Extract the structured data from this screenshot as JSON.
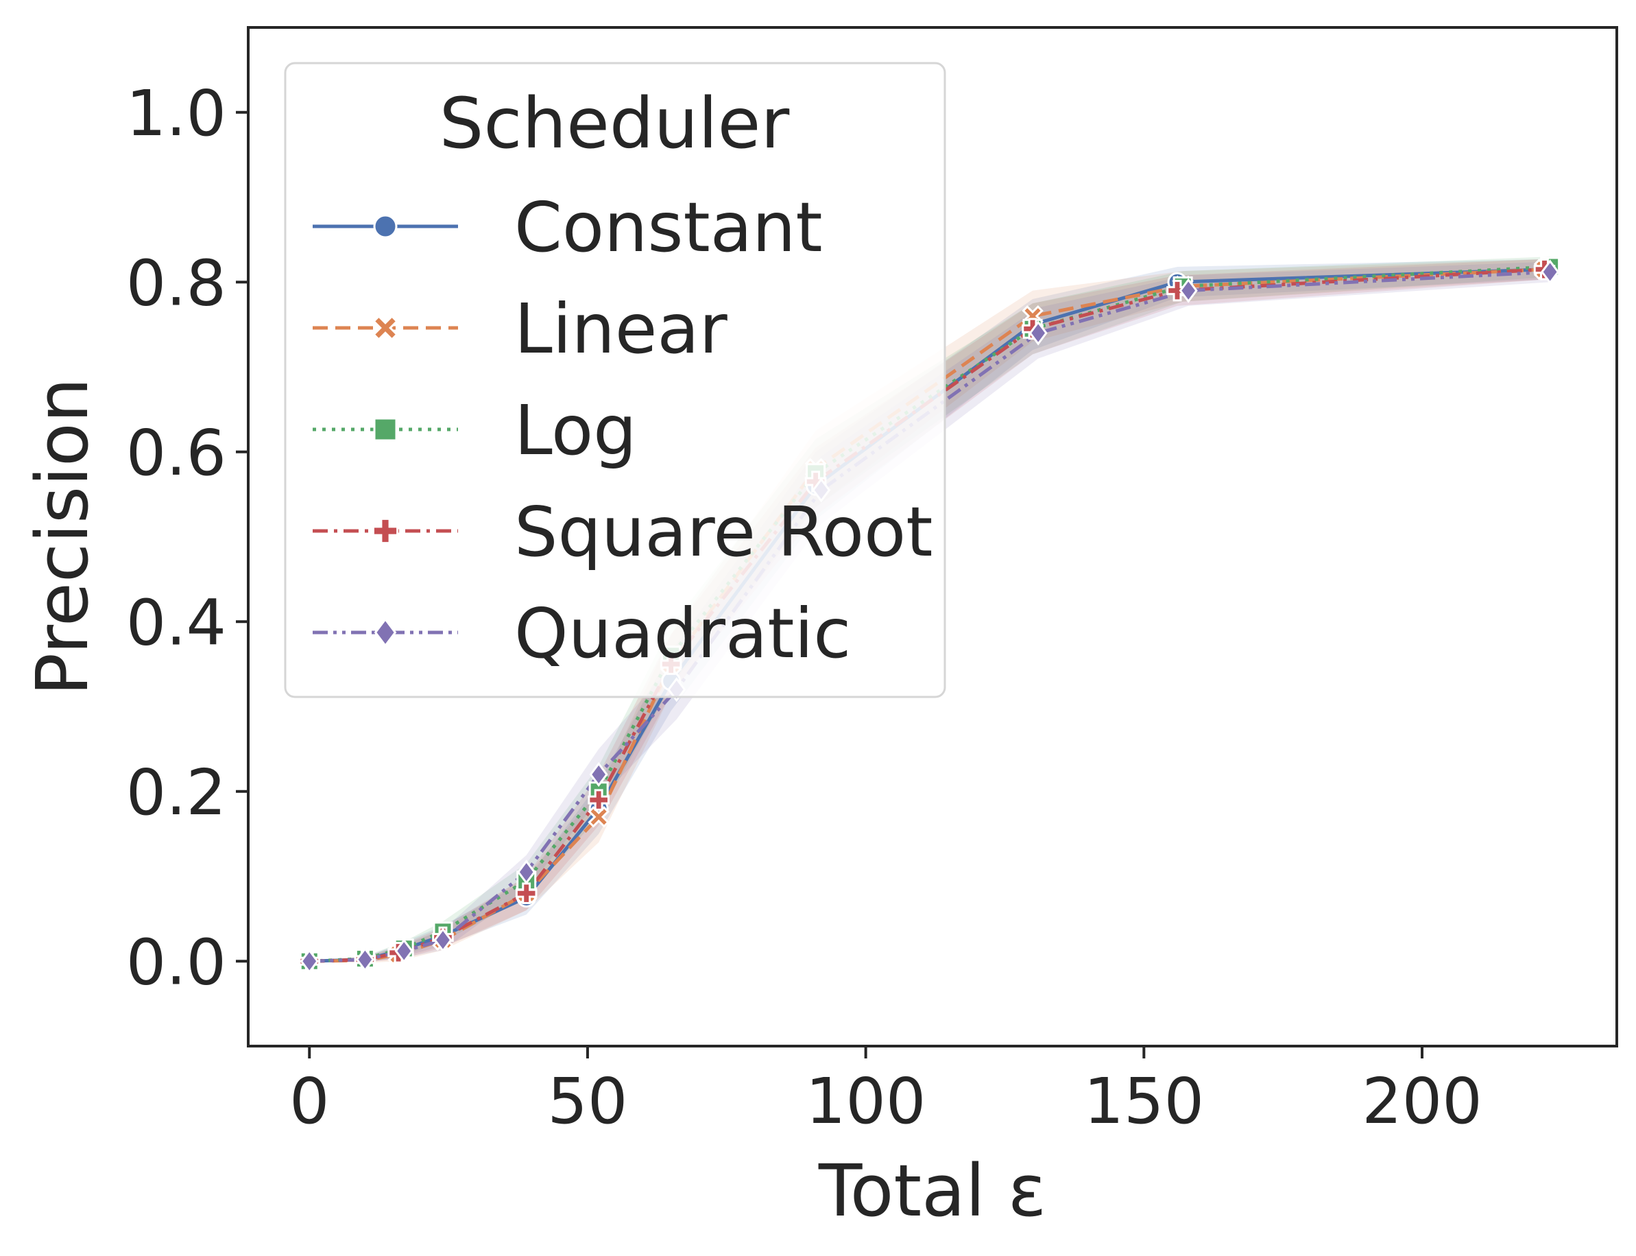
{
  "chart_data": {
    "type": "line",
    "xlabel": "Total ε",
    "ylabel": "Precision",
    "xlim": [
      -11,
      235
    ],
    "ylim": [
      -0.1,
      1.1
    ],
    "xticks": [
      0,
      50,
      100,
      150,
      200
    ],
    "yticks": [
      0.0,
      0.2,
      0.4,
      0.6,
      0.8,
      1.0
    ],
    "xtick_labels": [
      "0",
      "50",
      "100",
      "150",
      "200"
    ],
    "ytick_labels": [
      "0.0",
      "0.2",
      "0.4",
      "0.6",
      "0.8",
      "1.0"
    ],
    "grid": false,
    "confidence_bands": true,
    "legend": {
      "title": "Scheduler",
      "position": "upper-left"
    },
    "series": [
      {
        "name": "Constant",
        "color": "#4c72b0",
        "dash": "solid",
        "marker": "circle",
        "x": [
          0,
          10,
          16,
          24,
          39,
          52,
          65,
          91,
          130,
          156,
          222
        ],
        "y": [
          0.0,
          0.002,
          0.012,
          0.03,
          0.075,
          0.18,
          0.33,
          0.56,
          0.75,
          0.8,
          0.815
        ],
        "band": [
          0.0,
          0.003,
          0.008,
          0.012,
          0.02,
          0.03,
          0.035,
          0.04,
          0.03,
          0.018,
          0.012
        ]
      },
      {
        "name": "Linear",
        "color": "#dd8452",
        "dash": "dashed",
        "marker": "x",
        "x": [
          0,
          10,
          16,
          24,
          39,
          52,
          65,
          91,
          130,
          157,
          222
        ],
        "y": [
          0.0,
          0.001,
          0.008,
          0.025,
          0.08,
          0.17,
          0.35,
          0.58,
          0.76,
          0.795,
          0.815
        ],
        "band": [
          0.0,
          0.003,
          0.008,
          0.012,
          0.02,
          0.03,
          0.035,
          0.045,
          0.03,
          0.018,
          0.012
        ]
      },
      {
        "name": "Log",
        "color": "#55a868",
        "dash": "dotted",
        "marker": "square",
        "x": [
          0,
          10,
          17,
          24,
          39,
          52,
          65,
          91,
          130,
          157,
          223
        ],
        "y": [
          0.0,
          0.003,
          0.015,
          0.035,
          0.095,
          0.2,
          0.36,
          0.575,
          0.745,
          0.795,
          0.818
        ],
        "band": [
          0.0,
          0.003,
          0.008,
          0.012,
          0.02,
          0.03,
          0.035,
          0.04,
          0.03,
          0.018,
          0.012
        ]
      },
      {
        "name": "Square Root",
        "color": "#c44e52",
        "dash": "dashdot",
        "marker": "plus",
        "x": [
          0,
          10,
          16,
          24,
          39,
          52,
          65,
          91,
          130,
          156,
          222
        ],
        "y": [
          0.0,
          0.002,
          0.01,
          0.028,
          0.08,
          0.19,
          0.35,
          0.565,
          0.745,
          0.79,
          0.815
        ],
        "band": [
          0.0,
          0.003,
          0.008,
          0.012,
          0.02,
          0.03,
          0.035,
          0.04,
          0.03,
          0.018,
          0.012
        ]
      },
      {
        "name": "Quadratic",
        "color": "#8172b3",
        "dash": "dashdotdot",
        "marker": "diamond",
        "x": [
          0,
          10,
          17,
          24,
          39,
          52,
          66,
          92,
          131,
          158,
          223
        ],
        "y": [
          0.0,
          0.002,
          0.012,
          0.025,
          0.105,
          0.22,
          0.32,
          0.555,
          0.74,
          0.79,
          0.812
        ],
        "band": [
          0.0,
          0.003,
          0.008,
          0.012,
          0.02,
          0.03,
          0.035,
          0.04,
          0.03,
          0.018,
          0.012
        ]
      }
    ]
  }
}
